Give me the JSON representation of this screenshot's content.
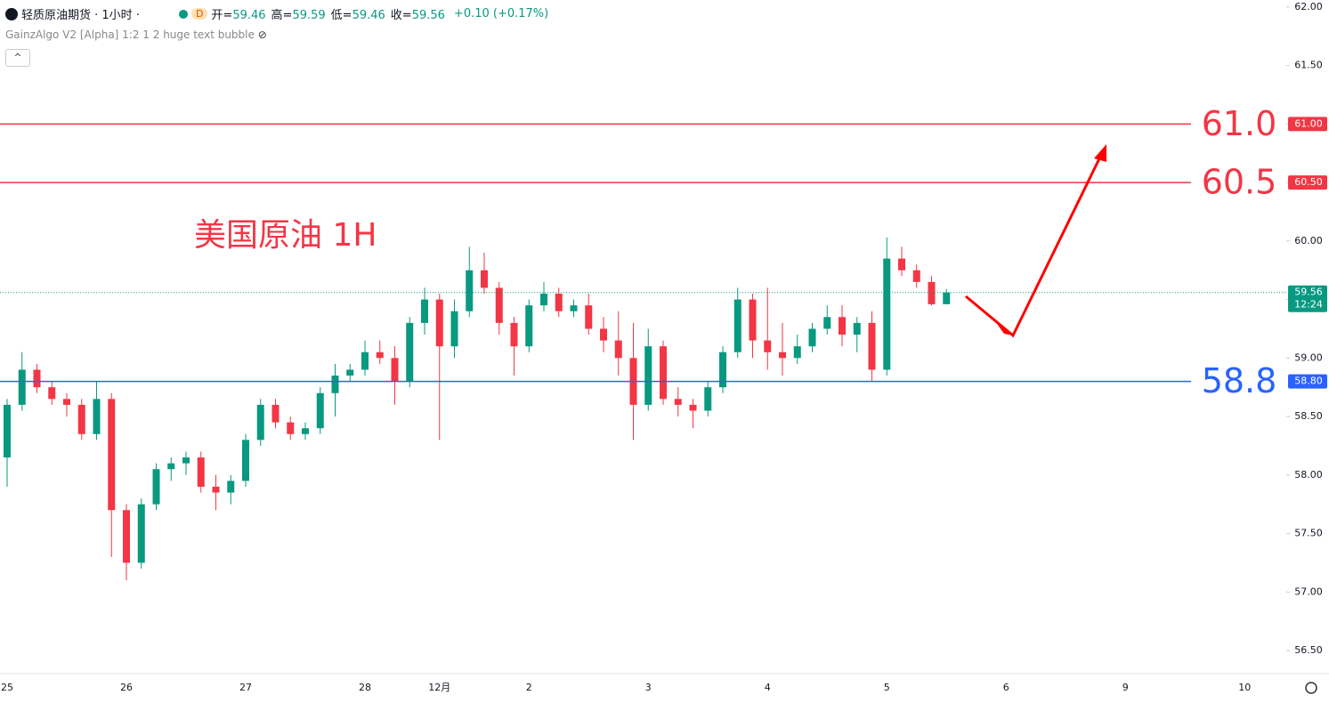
{
  "header": {
    "title": "轻质原油期货 · 1小时 ·",
    "badge": "D",
    "quote": [
      [
        "开=",
        "59.46"
      ],
      [
        "高=",
        "59.59"
      ],
      [
        "低=",
        "59.46"
      ],
      [
        "收=",
        "59.56"
      ]
    ],
    "change": "+0.10 (+0.17%)",
    "indicator": "GainzAlgo V2 [Alpha] 1:2 1 2 huge text bubble"
  },
  "chart_data": {
    "type": "candlestick",
    "annotation": "美国原油 1H",
    "up_color": "#089981",
    "down_color": "#f23645",
    "categories": [
      "25",
      null,
      null,
      null,
      null,
      null,
      null,
      null,
      "26",
      null,
      null,
      null,
      null,
      null,
      null,
      null,
      "27",
      null,
      null,
      null,
      null,
      null,
      null,
      null,
      "28",
      null,
      null,
      null,
      null,
      "12月",
      null,
      null,
      null,
      null,
      null,
      "2",
      null,
      null,
      null,
      null,
      null,
      null,
      null,
      "3",
      null,
      null,
      null,
      null,
      null,
      null,
      null,
      "4",
      null,
      null,
      null,
      null,
      null,
      null,
      null,
      "5",
      null,
      null,
      null,
      null,
      null,
      null,
      null,
      "6",
      null,
      null,
      null,
      null,
      null,
      null,
      null,
      "9",
      null,
      null,
      null,
      null,
      null,
      null,
      null,
      "10",
      null,
      null
    ],
    "open": [
      58.15,
      58.6,
      58.9,
      58.75,
      58.65,
      58.6,
      58.35,
      58.65,
      57.7,
      57.25,
      57.75,
      58.05,
      58.1,
      58.15,
      57.9,
      57.85,
      57.95,
      58.3,
      58.6,
      58.45,
      58.35,
      58.4,
      58.7,
      58.85,
      58.9,
      59.05,
      59.0,
      58.8,
      59.3,
      59.5,
      59.1,
      59.4,
      59.75,
      59.6,
      59.3,
      59.1,
      59.45,
      59.55,
      59.4,
      59.45,
      59.25,
      59.15,
      59.0,
      58.6,
      59.1,
      58.65,
      58.6,
      58.55,
      58.75,
      59.05,
      59.5,
      59.15,
      59.05,
      59.0,
      59.1,
      59.25,
      59.35,
      59.2,
      59.3,
      58.9,
      59.85,
      59.75,
      59.65,
      59.46,
      null,
      null,
      null,
      null,
      null,
      null,
      null,
      null,
      null,
      null,
      null,
      null,
      null,
      null,
      null,
      null,
      null,
      null,
      null,
      null,
      null,
      null
    ],
    "high": [
      58.65,
      59.05,
      58.95,
      58.8,
      58.7,
      58.65,
      58.8,
      58.7,
      57.75,
      57.8,
      58.1,
      58.15,
      58.2,
      58.2,
      58.0,
      58.0,
      58.35,
      58.65,
      58.65,
      58.5,
      58.45,
      58.75,
      58.95,
      58.95,
      59.15,
      59.15,
      59.1,
      59.35,
      59.6,
      59.55,
      59.5,
      59.95,
      59.9,
      59.65,
      59.35,
      59.5,
      59.65,
      59.6,
      59.5,
      59.55,
      59.35,
      59.4,
      59.3,
      59.25,
      59.15,
      58.75,
      58.65,
      58.8,
      59.1,
      59.6,
      59.55,
      59.6,
      59.3,
      59.2,
      59.3,
      59.45,
      59.45,
      59.35,
      59.4,
      60.03,
      59.95,
      59.8,
      59.7,
      59.59,
      null,
      null,
      null,
      null,
      null,
      null,
      null,
      null,
      null,
      null,
      null,
      null,
      null,
      null,
      null,
      null,
      null,
      null,
      null,
      null,
      null,
      null
    ],
    "low": [
      57.9,
      58.55,
      58.7,
      58.6,
      58.5,
      58.3,
      58.3,
      57.3,
      57.1,
      57.2,
      57.7,
      57.95,
      58.0,
      57.85,
      57.7,
      57.75,
      57.9,
      58.25,
      58.4,
      58.3,
      58.3,
      58.35,
      58.5,
      58.8,
      58.85,
      58.95,
      58.6,
      58.75,
      59.2,
      58.3,
      59.0,
      59.35,
      59.55,
      59.2,
      58.85,
      59.05,
      59.4,
      59.35,
      59.35,
      59.2,
      59.05,
      58.85,
      58.3,
      58.55,
      58.6,
      58.5,
      58.4,
      58.5,
      58.7,
      59.0,
      59.0,
      58.9,
      58.85,
      58.95,
      59.05,
      59.2,
      59.1,
      59.05,
      58.8,
      58.85,
      59.7,
      59.6,
      59.45,
      59.46,
      null,
      null,
      null,
      null,
      null,
      null,
      null,
      null,
      null,
      null,
      null,
      null,
      null,
      null,
      null,
      null,
      null,
      null,
      null,
      null,
      null,
      null
    ],
    "close": [
      58.6,
      58.9,
      58.75,
      58.65,
      58.6,
      58.35,
      58.65,
      57.7,
      57.25,
      57.75,
      58.05,
      58.1,
      58.15,
      57.9,
      57.85,
      57.95,
      58.3,
      58.6,
      58.45,
      58.35,
      58.4,
      58.7,
      58.85,
      58.9,
      59.05,
      59.0,
      58.8,
      59.3,
      59.5,
      59.1,
      59.4,
      59.75,
      59.6,
      59.3,
      59.1,
      59.45,
      59.55,
      59.4,
      59.45,
      59.25,
      59.15,
      59.0,
      58.6,
      59.1,
      58.65,
      58.6,
      58.55,
      58.75,
      59.05,
      59.5,
      59.15,
      59.05,
      59.0,
      59.1,
      59.25,
      59.35,
      59.2,
      59.3,
      58.9,
      59.85,
      59.75,
      59.65,
      59.46,
      59.56,
      null,
      null,
      null,
      null,
      null,
      null,
      null,
      null,
      null,
      null,
      null,
      null,
      null,
      null,
      null,
      null,
      null,
      null,
      null,
      null,
      null,
      null
    ],
    "ylim": [
      56.31,
      62.06
    ],
    "yticks": [
      {
        "value": 62,
        "label": "62.00"
      },
      {
        "value": 61.5,
        "label": "61.50"
      },
      {
        "value": 61,
        "label": "61.00"
      },
      {
        "value": 60.5,
        "label": "60.50"
      },
      {
        "value": 60,
        "label": "60.00"
      },
      {
        "value": 59.5,
        "label": "59.50"
      },
      {
        "value": 59,
        "label": "59.00"
      },
      {
        "value": 58.5,
        "label": "58.50"
      },
      {
        "value": 58,
        "label": "58.00"
      },
      {
        "value": 57.5,
        "label": "57.50"
      },
      {
        "value": 57,
        "label": "57.00"
      },
      {
        "value": 56.5,
        "label": "56.50"
      }
    ],
    "levels": [
      {
        "value": 61,
        "label": "61.0",
        "badge": "61.00",
        "color": "#f23645"
      },
      {
        "value": 60.5,
        "label": "60.5",
        "badge": "60.50",
        "color": "#f23645"
      },
      {
        "value": 58.8,
        "label": "58.8",
        "badge": "58.80",
        "color": "#2962ff"
      }
    ],
    "last_price": {
      "value": 59.56,
      "label": "59.56",
      "countdown": "12:24",
      "color": "#089981"
    }
  }
}
